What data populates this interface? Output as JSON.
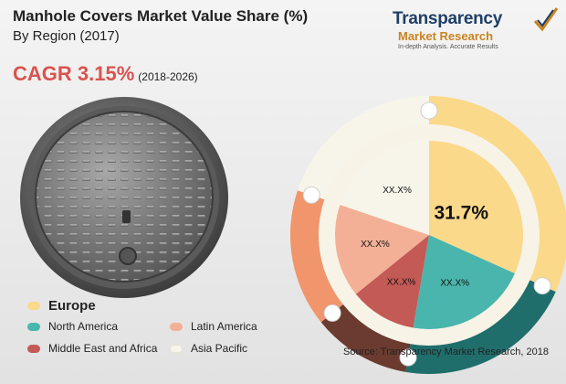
{
  "header": {
    "title": "Manhole Covers Market Value Share (%)",
    "subtitle": "By Region (2017)"
  },
  "cagr": {
    "value": "CAGR 3.15%",
    "period": "(2018-2026)"
  },
  "brand": {
    "name_line1": "Transparency",
    "name_line2": "Market Research",
    "tagline": "In-depth Analysis. Accurate Results"
  },
  "source": "Source: Transparency Market Research, 2018",
  "colors": {
    "europe": "#fbd98a",
    "north_america": "#4ab5ac",
    "latin_america": "#f3b096",
    "middle_east_africa": "#c45a55",
    "asia_pacific": "#f7f5ea",
    "outer_middle_east_africa": "#6b3b30",
    "outer_north_america": "#1f6e6c",
    "outer_latin_america": "#f0956c",
    "cagr_red": "#d9534f"
  },
  "chart_data": {
    "type": "pie",
    "title": "Manhole Covers Market Value Share (%)",
    "subtitle": "By Region (2017)",
    "slices": [
      {
        "name": "Europe",
        "value": 31.7,
        "label": "31.7%",
        "color": "#fbd98a"
      },
      {
        "name": "North America",
        "value": 21.0,
        "label": "XX.X%",
        "color": "#4ab5ac"
      },
      {
        "name": "Middle East and Africa",
        "value": 11.5,
        "label": "XX.X%",
        "color": "#c45a55"
      },
      {
        "name": "Latin America",
        "value": 16.0,
        "label": "XX.X%",
        "color": "#f3b096"
      },
      {
        "name": "Asia Pacific",
        "value": 19.8,
        "label": "XX.X%",
        "color": "#f7f5ea"
      }
    ],
    "outer_ring": [
      {
        "name": "Europe",
        "value": 31.7,
        "color": "#fbd98a"
      },
      {
        "name": "North America",
        "value": 21.0,
        "color": "#1f6e6c"
      },
      {
        "name": "Middle East and Africa",
        "value": 11.5,
        "color": "#6b3b30"
      },
      {
        "name": "Latin America",
        "value": 16.0,
        "color": "#f0956c"
      },
      {
        "name": "Asia Pacific",
        "value": 19.8,
        "color": "#f7f5ea"
      }
    ],
    "legend_placement": "bottom-left",
    "legend": [
      {
        "name": "Europe",
        "color": "#fbd98a"
      },
      {
        "name": "North America",
        "color": "#4ab5ac"
      },
      {
        "name": "Latin America",
        "color": "#f3b096"
      },
      {
        "name": "Middle East and Africa",
        "color": "#c45a55"
      },
      {
        "name": "Asia Pacific",
        "color": "#f7f5ea"
      }
    ]
  }
}
